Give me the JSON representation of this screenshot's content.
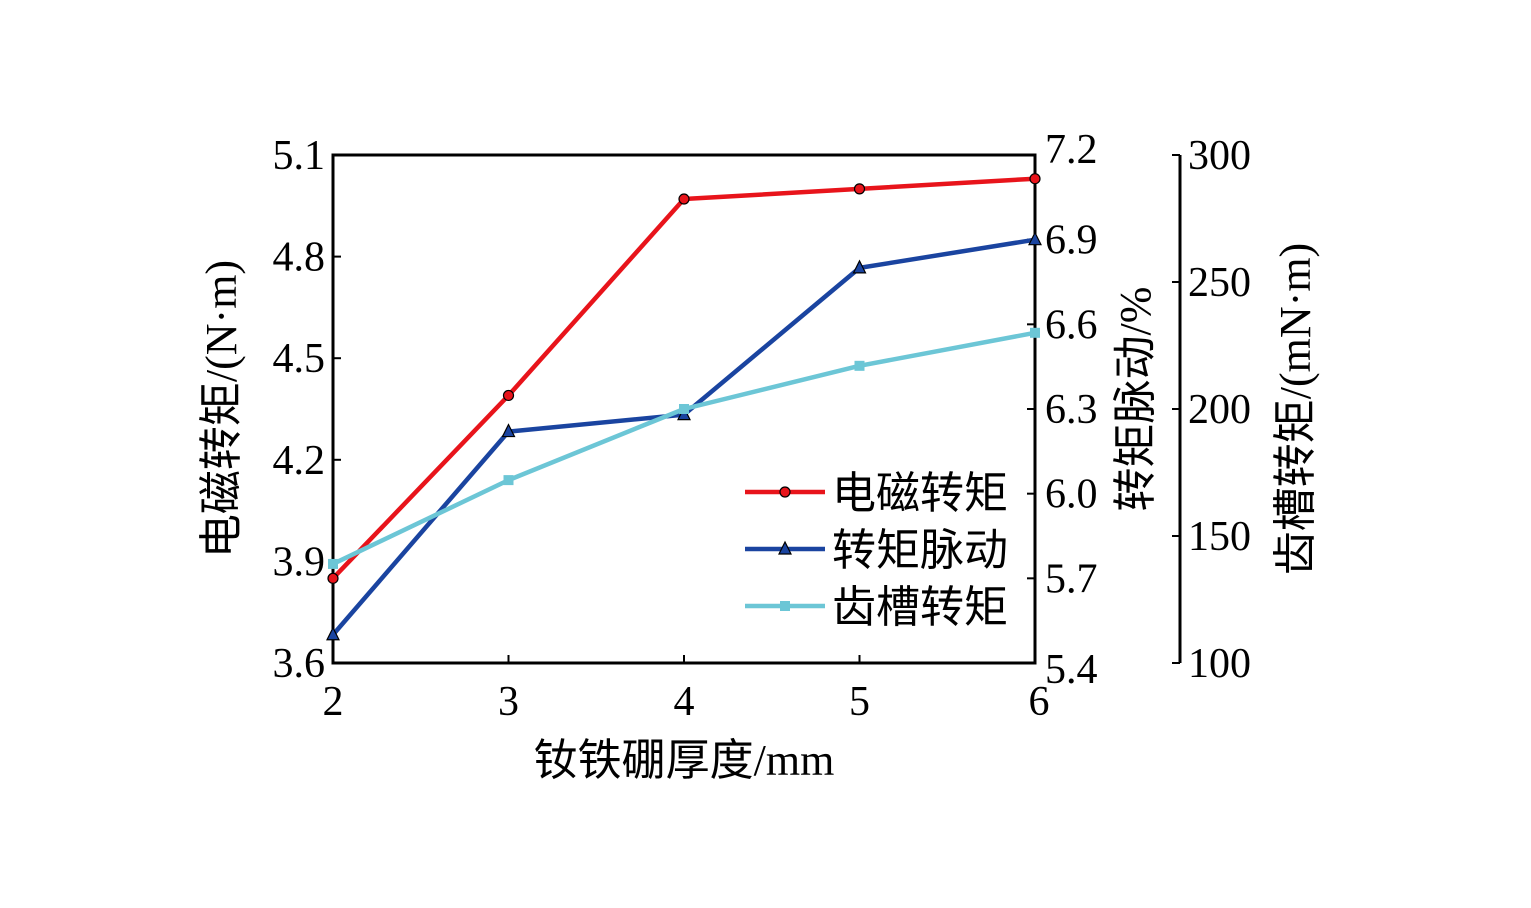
{
  "chart_data": {
    "type": "line",
    "x": [
      2,
      3,
      4,
      5,
      6
    ],
    "xlabel": "钕铁硼厚度/mm",
    "xlim": [
      2,
      6
    ],
    "xticks": [
      "2",
      "3",
      "4",
      "5",
      "6"
    ],
    "axes": [
      {
        "id": "left",
        "label": "电磁转矩/(N·m)",
        "ylim": [
          3.6,
          5.1
        ],
        "ticks": [
          "3.6",
          "3.9",
          "4.2",
          "4.5",
          "4.8",
          "5.1"
        ]
      },
      {
        "id": "right",
        "label": "转矩脉动/%",
        "ylim": [
          5.4,
          7.2
        ],
        "ticks": [
          "5.4",
          "5.7",
          "6.0",
          "6.3",
          "6.6",
          "6.9",
          "7.2"
        ]
      },
      {
        "id": "right2",
        "label": "齿槽转矩/(mN·m)",
        "ylim": [
          100,
          300
        ],
        "ticks": [
          "100",
          "150",
          "200",
          "250",
          "300"
        ]
      }
    ],
    "series": [
      {
        "name": "电磁转矩",
        "axis": "left",
        "values": [
          3.85,
          4.39,
          4.97,
          5.0,
          5.03
        ],
        "color": "#e8141b",
        "marker": "circle"
      },
      {
        "name": "转矩脉动",
        "axis": "right",
        "values": [
          5.5,
          6.22,
          6.28,
          6.8,
          6.9
        ],
        "color": "#1a44a0",
        "marker": "triangle"
      },
      {
        "name": "齿槽转矩",
        "axis": "right2",
        "values": [
          139,
          172,
          200,
          217,
          230
        ],
        "color": "#6cc6d6",
        "marker": "square"
      }
    ],
    "legend": "bottom-right",
    "grid": false
  }
}
